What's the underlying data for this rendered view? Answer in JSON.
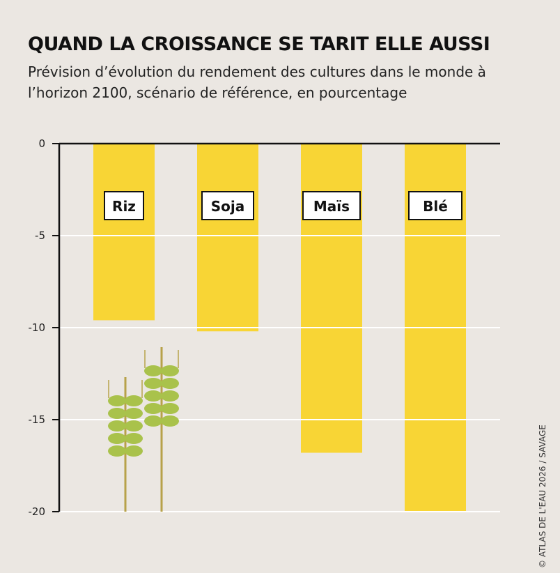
{
  "title": "QUAND LA CROISSANCE SE TARIT ELLE AUSSI",
  "subtitle": "Prévision d’évolution du rendement des cultures dans le monde à l’horizon 2100, scénario de référence, en pourcentage",
  "credit": "© ATLAS DE L'EAU 2026 / SAVAGE",
  "colors": {
    "background": "#ebe7e2",
    "bar": "#f8d535",
    "wheat": "#a9c24b",
    "axis": "#111111",
    "grid": "#ffffff"
  },
  "chart_data": {
    "type": "bar",
    "categories": [
      "Riz",
      "Soja",
      "Maïs",
      "Blé"
    ],
    "values": [
      -9.6,
      -10.2,
      -16.8,
      -20
    ],
    "title": "QUAND LA CROISSANCE SE TARIT ELLE AUSSI",
    "xlabel": "",
    "ylabel": "",
    "ylim": [
      -20,
      0
    ],
    "yticks": [
      0,
      -5,
      -10,
      -15,
      -20
    ],
    "ytick_labels": [
      "0",
      "-5",
      "-10",
      "-15",
      "-20"
    ],
    "grid": true,
    "legend": "none"
  }
}
